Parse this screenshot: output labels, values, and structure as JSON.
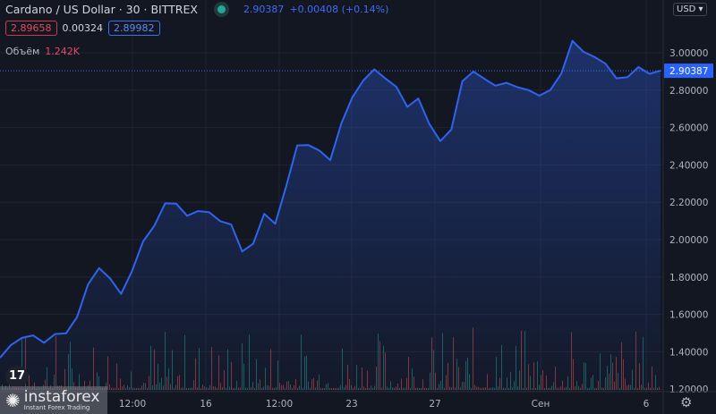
{
  "header": {
    "symbol": "Cardano / US Dollar",
    "interval": "30",
    "exchange": "BITTREX",
    "last_price": "2.90387",
    "change": "+0.00408 (+0.14%)"
  },
  "quote": {
    "bid": "2.89658",
    "spread": "0.00324",
    "ask": "2.89982"
  },
  "volume": {
    "label": "Объём",
    "value": "1.242K"
  },
  "currency_button": "USD",
  "price_axis": {
    "ticks": [
      "3.00000",
      "2.80000",
      "2.60000",
      "2.40000",
      "2.20000",
      "2.00000",
      "1.80000",
      "1.60000",
      "1.40000",
      "1.20000"
    ],
    "current": "2.90387"
  },
  "time_axis": {
    "ticks": [
      "12:00",
      "16",
      "12:00",
      "23",
      "27",
      "Сен",
      "6"
    ]
  },
  "watermark": {
    "name": "instaforex",
    "tagline": "Instant Forex Trading",
    "tv": "17"
  },
  "colors": {
    "line": "#2f63f0",
    "bg": "#131722",
    "up": "#26a69a",
    "down": "#ef5350"
  },
  "series": [
    1.368,
    1.44,
    1.464,
    1.474,
    1.44,
    1.488,
    1.512,
    1.584,
    1.751,
    1.847,
    1.799,
    1.703,
    1.847,
    1.99,
    2.086,
    2.206,
    2.182,
    2.134,
    2.158,
    2.134,
    2.11,
    2.086,
    1.943,
    1.99,
    2.134,
    2.086,
    2.278,
    2.493,
    2.517,
    2.469,
    2.421,
    2.612,
    2.756,
    2.852,
    2.923,
    2.876,
    2.804,
    2.708,
    2.756,
    2.612,
    2.517,
    2.589,
    2.852,
    2.9,
    2.852,
    2.828,
    2.852,
    2.804,
    2.804,
    2.78,
    2.804,
    2.876,
    3.067,
    2.995,
    2.971,
    2.947,
    2.852,
    2.876,
    2.923,
    2.9,
    2.904
  ]
}
